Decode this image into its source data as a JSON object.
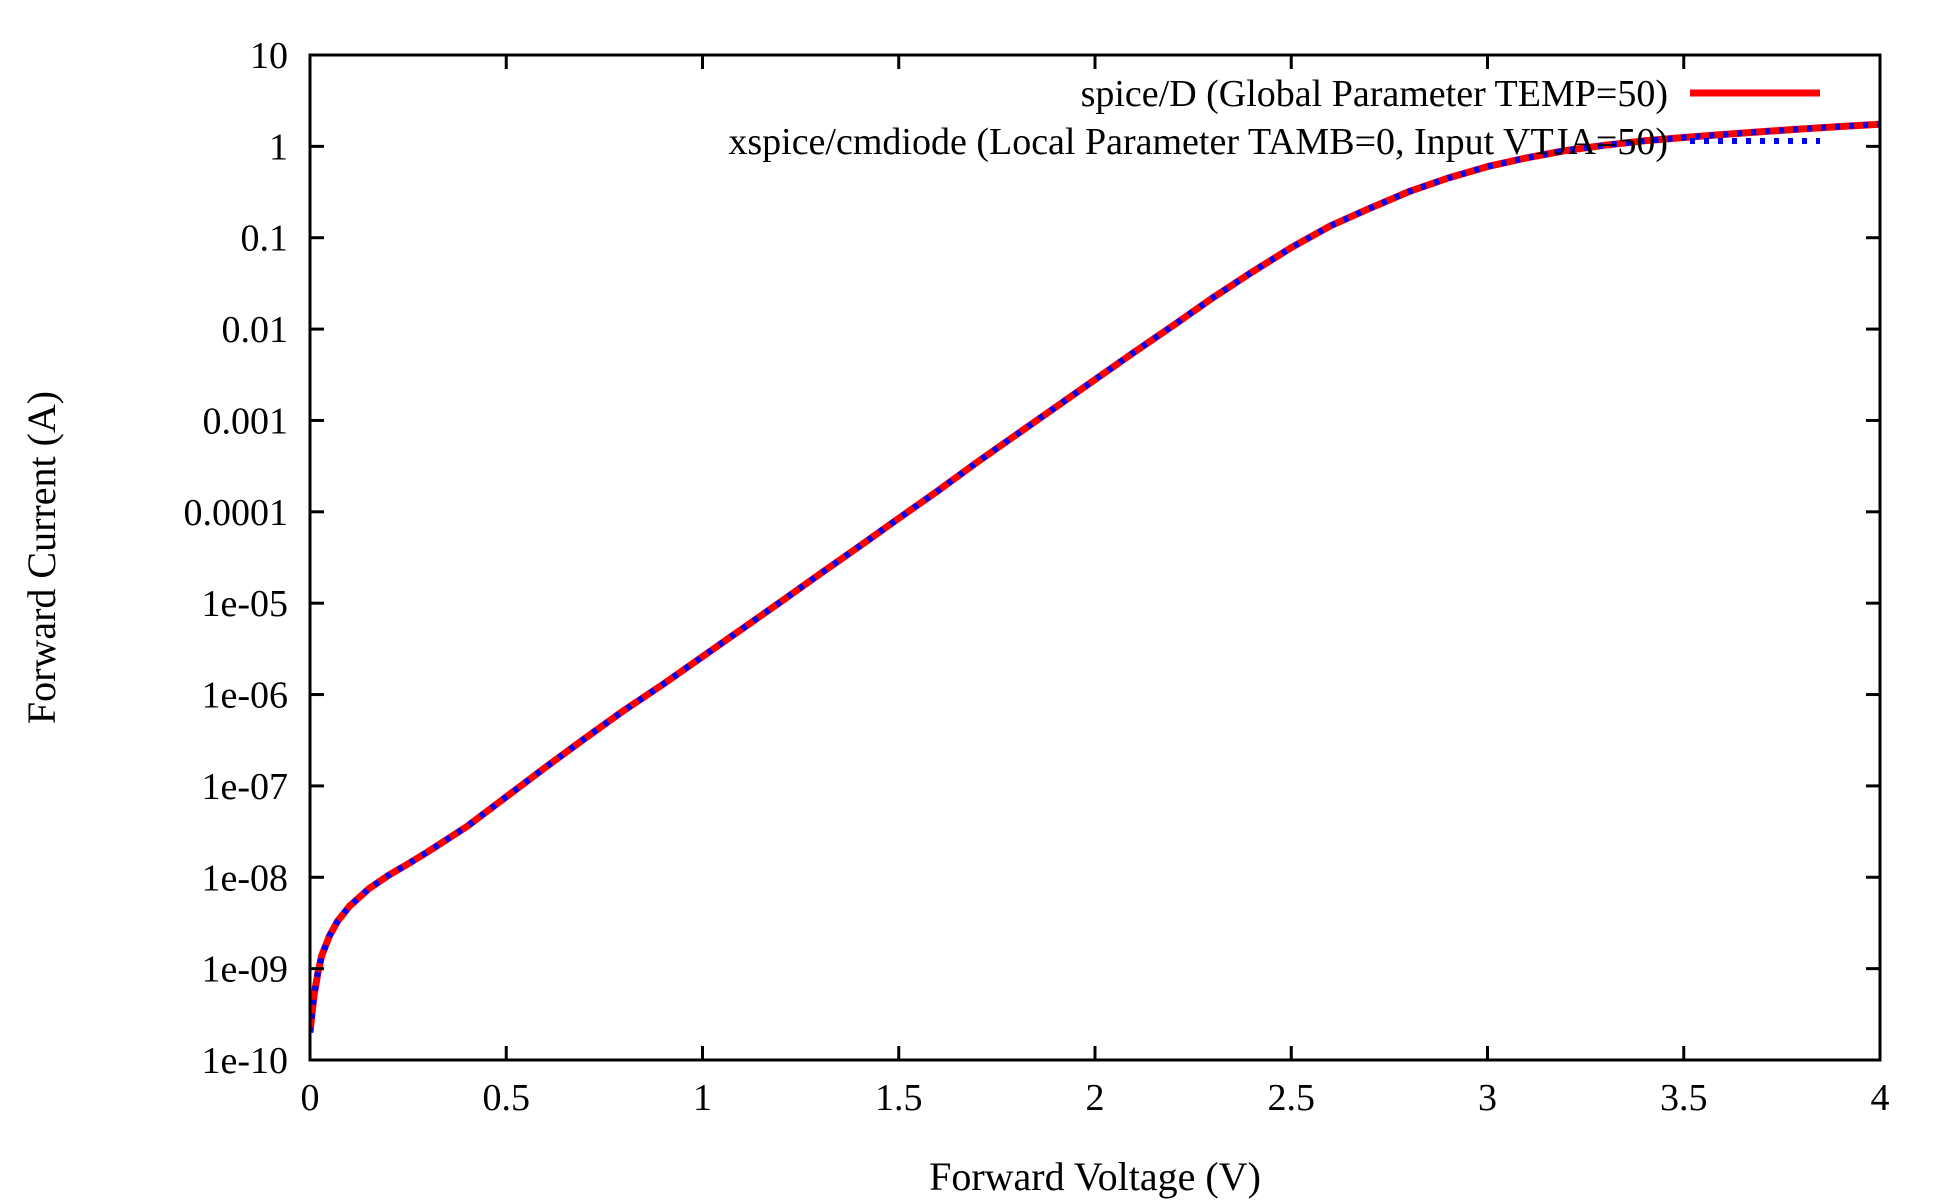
{
  "chart_data": {
    "type": "line",
    "title": "",
    "xlabel": "Forward Voltage (V)",
    "ylabel": "Forward Current (A)",
    "xlim": [
      0,
      4
    ],
    "ylim": [
      1e-10,
      10
    ],
    "yscale": "log",
    "grid": false,
    "legend_position": "top-right",
    "x_ticks": [
      0,
      0.5,
      1,
      1.5,
      2,
      2.5,
      3,
      3.5,
      4
    ],
    "x_tick_labels": [
      "0",
      "0.5",
      "1",
      "1.5",
      "2",
      "2.5",
      "3",
      "3.5",
      "4"
    ],
    "y_ticks": [
      1e-10,
      1e-09,
      1e-08,
      1e-07,
      1e-06,
      1e-05,
      0.0001,
      0.001,
      0.01,
      0.1,
      1,
      10
    ],
    "y_tick_labels": [
      "1e-10",
      "1e-09",
      "1e-08",
      "1e-07",
      "1e-06",
      "1e-05",
      "0.0001",
      "0.001",
      "0.01",
      "0.1",
      "1",
      "10"
    ],
    "series": [
      {
        "name": "spice/D (Global Parameter TEMP=50)",
        "color": "#ff0000",
        "style": "solid",
        "x": [
          0,
          0.01,
          0.02,
          0.03,
          0.05,
          0.07,
          0.1,
          0.15,
          0.2,
          0.25,
          0.3,
          0.4,
          0.5,
          0.6,
          0.7,
          0.8,
          0.9,
          1.0,
          1.1,
          1.2,
          1.3,
          1.4,
          1.5,
          1.6,
          1.7,
          1.8,
          1.9,
          2.0,
          2.1,
          2.2,
          2.3,
          2.4,
          2.5,
          2.6,
          2.7,
          2.8,
          2.9,
          3.0,
          3.1,
          3.2,
          3.3,
          3.4,
          3.5,
          3.6,
          3.7,
          3.8,
          3.9,
          4.0
        ],
        "y": [
          2e-10,
          5e-10,
          9e-10,
          1.4e-09,
          2.3e-09,
          3.3e-09,
          4.8e-09,
          7.5e-09,
          1.05e-08,
          1.4e-08,
          1.9e-08,
          3.6e-08,
          7.6e-08,
          1.6e-07,
          3.3e-07,
          6.7e-07,
          1.3e-06,
          2.6e-06,
          5.2e-06,
          1.04e-05,
          2.1e-05,
          4.2e-05,
          8.5e-05,
          0.00017,
          0.00035,
          0.0007,
          0.0014,
          0.0028,
          0.0056,
          0.011,
          0.022,
          0.042,
          0.078,
          0.135,
          0.21,
          0.32,
          0.45,
          0.6,
          0.75,
          0.9,
          1.03,
          1.15,
          1.25,
          1.35,
          1.45,
          1.55,
          1.65,
          1.75
        ]
      },
      {
        "name": "xspice/cmdiode (Local Parameter TAMB=0, Input VTJA=50)",
        "color": "#0000ff",
        "style": "dashed",
        "x": [
          0,
          0.01,
          0.02,
          0.03,
          0.05,
          0.07,
          0.1,
          0.15,
          0.2,
          0.25,
          0.3,
          0.4,
          0.5,
          0.6,
          0.7,
          0.8,
          0.9,
          1.0,
          1.1,
          1.2,
          1.3,
          1.4,
          1.5,
          1.6,
          1.7,
          1.8,
          1.9,
          2.0,
          2.1,
          2.2,
          2.3,
          2.4,
          2.5,
          2.6,
          2.7,
          2.8,
          2.9,
          3.0,
          3.1,
          3.2,
          3.3,
          3.4,
          3.5,
          3.6,
          3.7,
          3.8,
          3.9,
          4.0
        ],
        "y": [
          2e-10,
          5e-10,
          9e-10,
          1.4e-09,
          2.3e-09,
          3.3e-09,
          4.8e-09,
          7.5e-09,
          1.05e-08,
          1.4e-08,
          1.9e-08,
          3.6e-08,
          7.6e-08,
          1.6e-07,
          3.3e-07,
          6.7e-07,
          1.3e-06,
          2.6e-06,
          5.2e-06,
          1.04e-05,
          2.1e-05,
          4.2e-05,
          8.5e-05,
          0.00017,
          0.00035,
          0.0007,
          0.0014,
          0.0028,
          0.0056,
          0.011,
          0.022,
          0.042,
          0.078,
          0.135,
          0.21,
          0.32,
          0.45,
          0.6,
          0.75,
          0.9,
          1.03,
          1.15,
          1.25,
          1.35,
          1.45,
          1.55,
          1.65,
          1.75
        ]
      }
    ]
  }
}
